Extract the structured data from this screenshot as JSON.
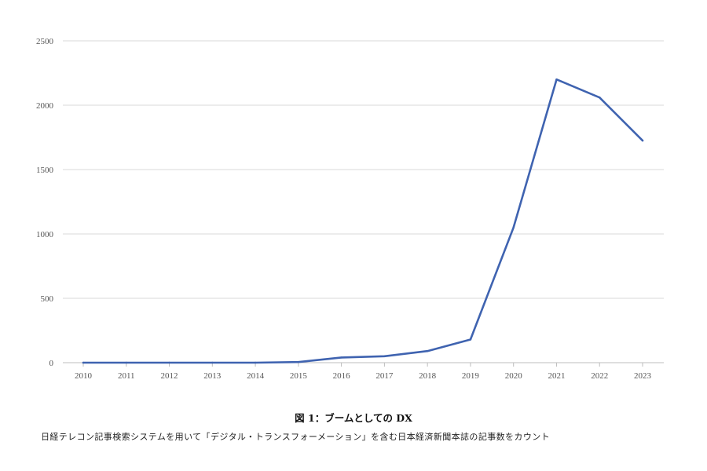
{
  "chart_data": {
    "type": "line",
    "x": [
      "2010",
      "2011",
      "2012",
      "2013",
      "2014",
      "2015",
      "2016",
      "2017",
      "2018",
      "2019",
      "2020",
      "2021",
      "2022",
      "2023"
    ],
    "series": [
      {
        "name": "",
        "values": [
          0,
          0,
          0,
          0,
          0,
          5,
          40,
          50,
          90,
          180,
          1050,
          2200,
          2060,
          1725
        ]
      }
    ],
    "ylim": [
      0,
      2500
    ],
    "yticks": [
      "0",
      "500",
      "1000",
      "1500",
      "2000",
      "2500"
    ],
    "grid": "horizontal",
    "legend": "none",
    "line_color": "#3f63b0",
    "grid_color": "#d9d9d9"
  },
  "caption": "図 1：ブームとしての DX",
  "note": "日経テレコン記事検索システムを用いて「デジタル・トランスフォーメーション」を含む日本経済新聞本誌の記事数をカウント"
}
